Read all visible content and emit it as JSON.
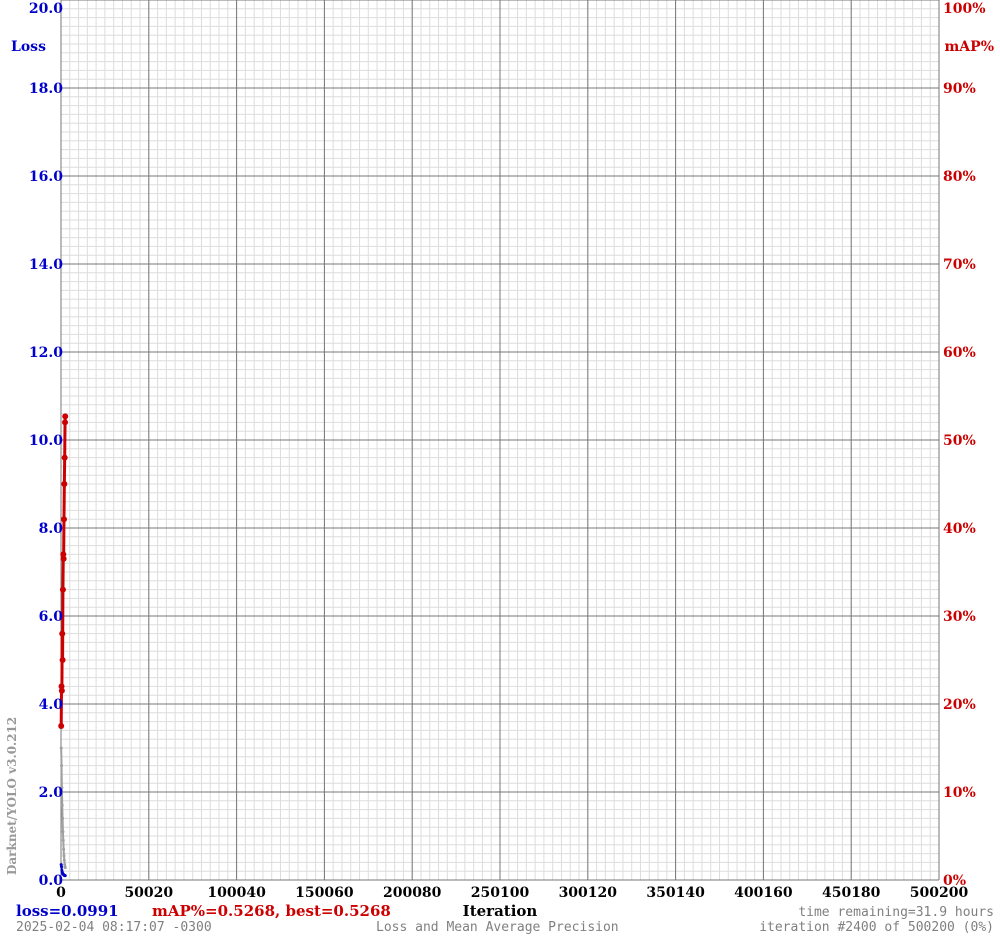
{
  "chart_data": {
    "type": "line",
    "x_label": "Iteration",
    "y_left_label": "Loss",
    "y_right_label": "mAP%",
    "watermark": "Darknet/YOLO v3.0.212",
    "subtitle": "Loss and Mean Average Precision",
    "x_range": [
      0,
      500200
    ],
    "x_ticks": [
      "0",
      "50020",
      "100040",
      "150060",
      "200080",
      "250100",
      "300120",
      "350140",
      "400160",
      "450180",
      "500200"
    ],
    "y_left_range": [
      0,
      20
    ],
    "y_left_ticks": [
      "0.0",
      "2.0",
      "4.0",
      "6.0",
      "8.0",
      "10.0",
      "12.0",
      "14.0",
      "16.0",
      "18.0",
      "20.0"
    ],
    "y_right_range": [
      0,
      100
    ],
    "y_right_ticks": [
      "0%",
      "10%",
      "20%",
      "30%",
      "40%",
      "50%",
      "60%",
      "70%",
      "80%",
      "90%",
      "100%"
    ],
    "grid": true,
    "colors": {
      "loss": "#0000cc",
      "map": "#cc0000",
      "axis_left": "#0000cc",
      "axis_right": "#cc0000",
      "avg_loss": "#a0a0a0"
    },
    "series": [
      {
        "axis": "left",
        "color": "#0000cc",
        "x": [
          100,
          300,
          500,
          700,
          900,
          1100,
          1300,
          1500,
          1700,
          1900,
          2100,
          2300,
          2400
        ],
        "y": [
          0.35,
          0.3,
          0.22,
          0.18,
          0.15,
          0.14,
          0.13,
          0.12,
          0.11,
          0.105,
          0.1,
          0.1,
          0.0991
        ]
      },
      {
        "axis": "left",
        "color": "#a0a0a0",
        "x": [
          100,
          300,
          500,
          700,
          900,
          1100,
          1300,
          1500,
          1700,
          1900,
          2100,
          2300,
          2400
        ],
        "y": [
          3.0,
          2.6,
          2.1,
          1.7,
          1.4,
          1.1,
          0.9,
          0.7,
          0.55,
          0.45,
          0.35,
          0.3,
          0.28
        ]
      },
      {
        "axis": "right",
        "color": "#cc0000",
        "x": [
          100,
          300,
          500,
          700,
          900,
          1100,
          1300,
          1500,
          1700,
          1900,
          2100,
          2300,
          2400
        ],
        "y": [
          17.5,
          22.0,
          21.5,
          28.0,
          25.0,
          33.0,
          37.0,
          36.5,
          41.0,
          45.0,
          48.0,
          52.0,
          52.68
        ]
      }
    ]
  },
  "footer": {
    "loss_text": "loss=0.0991",
    "map_text": "mAP%=0.5268, best=0.5268",
    "time_remaining": "time remaining=31.9 hours",
    "timestamp": "2025-02-04 08:17:07 -0300",
    "iteration_text": "iteration #2400 of 500200 (0%)"
  }
}
